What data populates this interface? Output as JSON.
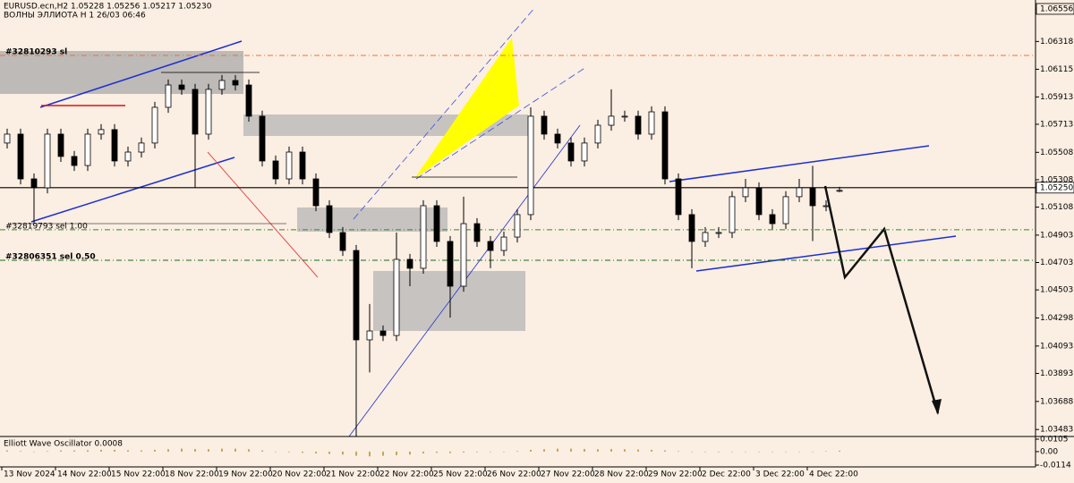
{
  "chart_data": {
    "type": "candlestick",
    "title": "EURUSD.ecn,H2  1.05228 1.05256 1.05217 1.05230",
    "subtitle": "ВОЛНЫ ЭЛЛИОТА H 1 26/03 06:46",
    "categories": [
      "13 Nov 2024",
      null,
      null,
      null,
      "14 Nov 22:00",
      null,
      null,
      null,
      "15 Nov 22:00",
      null,
      null,
      null,
      "18 Nov 22:00",
      null,
      null,
      null,
      "19 Nov 22:00",
      null,
      null,
      null,
      "20 Nov 22:00",
      null,
      null,
      null,
      "21 Nov 22:00",
      null,
      null,
      null,
      "22 Nov 22:00",
      null,
      null,
      null,
      "25 Nov 22:00",
      null,
      null,
      null,
      "26 Nov 22:00",
      null,
      null,
      null,
      "27 Nov 22:00",
      null,
      null,
      null,
      "28 Nov 22:00",
      null,
      null,
      null,
      "29 Nov 22:00",
      null,
      null,
      null,
      "2 Dec 22:00",
      null,
      null,
      null,
      "3 Dec 22:00",
      null,
      null,
      null,
      "4 Dec 22:00",
      null,
      null
    ],
    "open": [
      1.05576,
      1.05641,
      1.05314,
      1.05249,
      1.05641,
      1.05478,
      1.05412,
      1.05641,
      1.05674,
      1.05445,
      1.0551,
      1.05576,
      1.05837,
      1.06,
      1.05968,
      1.05641,
      1.05968,
      1.06033,
      1.06,
      1.05772,
      1.05445,
      1.05314,
      1.0551,
      1.05314,
      1.05118,
      1.04922,
      1.04791,
      1.04138,
      1.04203,
      1.0417,
      1.04726,
      1.04661,
      1.05118,
      1.04857,
      1.0453,
      1.04987,
      1.04857,
      1.04791,
      1.04889,
      1.05053,
      1.05772,
      1.05641,
      1.05576,
      1.05445,
      1.05576,
      1.05706,
      1.05772,
      1.05772,
      1.05641,
      1.05804,
      1.05314,
      1.05053,
      1.04857,
      1.04922,
      1.04922,
      1.05184,
      1.05249,
      1.05053,
      1.04987,
      1.05184,
      1.05249,
      1.05118,
      1.05228
    ],
    "high": [
      1.05681,
      1.05681,
      1.05354,
      1.05681,
      1.05681,
      1.05518,
      1.05681,
      1.05714,
      1.05714,
      1.0555,
      1.05616,
      1.05877,
      1.0604,
      1.0604,
      1.06008,
      1.06008,
      1.06073,
      1.06073,
      1.0604,
      1.05812,
      1.05485,
      1.0555,
      1.0555,
      1.05354,
      1.05158,
      1.04962,
      1.04831,
      1.044,
      1.04243,
      1.04922,
      1.04766,
      1.05158,
      1.05158,
      1.04897,
      1.05184,
      1.05027,
      1.04897,
      1.04929,
      1.05093,
      1.05837,
      1.05812,
      1.05681,
      1.05616,
      1.05616,
      1.05746,
      1.05968,
      1.05812,
      1.05812,
      1.05844,
      1.05844,
      1.05354,
      1.05093,
      1.04962,
      1.04962,
      1.05224,
      1.05314,
      1.05289,
      1.05093,
      1.05224,
      1.05314,
      1.0541,
      1.05158,
      1.05256
    ],
    "low": [
      1.05536,
      1.05274,
      1.04987,
      1.05209,
      1.05438,
      1.05372,
      1.05372,
      1.05601,
      1.05405,
      1.05405,
      1.0547,
      1.05536,
      1.05797,
      1.05928,
      1.05249,
      1.05601,
      1.05928,
      1.0596,
      1.05732,
      1.05405,
      1.05274,
      1.05274,
      1.05274,
      1.05078,
      1.04882,
      1.04751,
      1.03432,
      1.039,
      1.0413,
      1.0413,
      1.0453,
      1.04621,
      1.04817,
      1.043,
      1.0449,
      1.04817,
      1.04661,
      1.04751,
      1.04849,
      1.05013,
      1.05601,
      1.05536,
      1.05405,
      1.05405,
      1.05536,
      1.05666,
      1.05732,
      1.05601,
      1.05601,
      1.05274,
      1.05013,
      1.04661,
      1.04817,
      1.04882,
      1.04882,
      1.05144,
      1.05013,
      1.04947,
      1.04947,
      1.05144,
      1.0486,
      1.05078,
      1.05217
    ],
    "close": [
      1.05641,
      1.05314,
      1.05249,
      1.05641,
      1.05478,
      1.05412,
      1.05641,
      1.05674,
      1.05445,
      1.0551,
      1.05576,
      1.05837,
      1.06,
      1.05968,
      1.05641,
      1.05968,
      1.06033,
      1.06,
      1.05772,
      1.05445,
      1.05314,
      1.0551,
      1.05314,
      1.05118,
      1.04922,
      1.04791,
      1.04138,
      1.04203,
      1.0417,
      1.04726,
      1.04661,
      1.05118,
      1.04857,
      1.0453,
      1.04987,
      1.04857,
      1.04791,
      1.04889,
      1.05053,
      1.05772,
      1.05641,
      1.05576,
      1.05445,
      1.05576,
      1.05706,
      1.05772,
      1.05772,
      1.05641,
      1.05804,
      1.05314,
      1.05053,
      1.04857,
      1.04922,
      1.04922,
      1.05184,
      1.05249,
      1.05053,
      1.04987,
      1.05184,
      1.05249,
      1.05118,
      1.05118,
      1.0523
    ],
    "ylim": [
      1.03432,
      1.06621
    ],
    "yticks": [
      1.06556,
      1.06318,
      1.06115,
      1.05913,
      1.05713,
      1.05508,
      1.05308,
      {
        "value": 1.0525,
        "label": "1.05250"
      },
      1.05108,
      1.04903,
      1.04703,
      1.04503,
      1.04298,
      1.04093,
      1.03893,
      1.03688,
      1.03483
    ],
    "levels": [
      {
        "value": 1.06216,
        "label": "#32810293 sl",
        "color": "#e8743b"
      },
      {
        "value": 1.04942,
        "label": "#32819793 sel 1.00",
        "color": "#2e8b2e"
      },
      {
        "value": 1.04719,
        "label": "#32806351 sel 0.50",
        "color": "#1a6b1a"
      }
    ],
    "oscillator": {
      "title": "Elliott Wave Oscillator 0.0008",
      "color": "#c2a85a",
      "ylim": [
        -0.0114,
        0.0105
      ],
      "yticks": [
        0.0105,
        {
          "value": 0,
          "label": "0.00"
        },
        -0.0114
      ],
      "values": [
        0.001,
        0.0005,
        0,
        0.0005,
        0.001,
        0.001,
        0.0012,
        0.0015,
        0.0015,
        0.0012,
        0.001,
        0.0015,
        0.002,
        0.0025,
        0.0022,
        0.002,
        0.0025,
        0.0025,
        0.002,
        0.001,
        0,
        -0.0005,
        -0.001,
        -0.0015,
        -0.002,
        -0.0025,
        -0.0035,
        -0.004,
        -0.0035,
        -0.003,
        -0.0025,
        -0.0015,
        -0.001,
        -0.0012,
        -0.0008,
        -0.0005,
        -0.0003,
        0,
        0.0005,
        0.0015,
        0.002,
        0.0025,
        0.0025,
        0.0022,
        0.002,
        0.0022,
        0.002,
        0.0018,
        0.0015,
        0.001,
        0.0005,
        0,
        -0.0003,
        -0.0005,
        -0.0002,
        0,
        -0.0002,
        -0.0003,
        -0.0002,
        -0.0001,
        0,
        0.0003,
        0.0008
      ]
    }
  }
}
